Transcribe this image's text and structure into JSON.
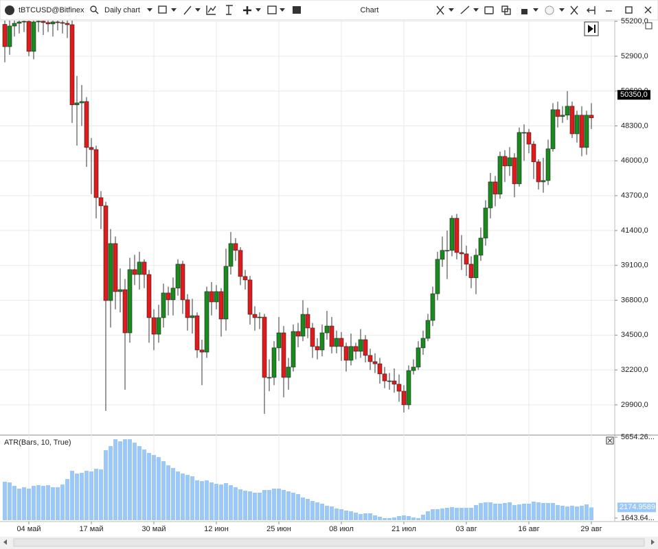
{
  "toolbar": {
    "symbol": "tBTCUSD@Bitfinex",
    "chart_type": "Daily chart",
    "title": "Chart"
  },
  "chart_data": [
    {
      "type": "candlestick",
      "categories": [
        null,
        null,
        null,
        null,
        null,
        "04 май",
        null,
        null,
        null,
        null,
        null,
        null,
        null,
        null,
        null,
        null,
        null,
        null,
        "17 май",
        null,
        null,
        null,
        null,
        null,
        null,
        null,
        null,
        null,
        null,
        null,
        null,
        "30 май",
        null,
        null,
        null,
        null,
        null,
        null,
        null,
        null,
        null,
        null,
        null,
        null,
        "12 июн",
        null,
        null,
        null,
        null,
        null,
        null,
        null,
        null,
        null,
        null,
        null,
        null,
        "25 июн",
        null,
        null,
        null,
        null,
        null,
        null,
        null,
        null,
        null,
        null,
        null,
        null,
        "08 июл",
        null,
        null,
        null,
        null,
        null,
        null,
        null,
        null,
        null,
        null,
        null,
        null,
        "21 июл",
        null,
        null,
        null,
        null,
        null,
        null,
        null,
        null,
        null,
        null,
        null,
        null,
        "03 авг",
        null,
        null,
        null,
        null,
        null,
        null,
        null,
        null,
        null,
        null,
        null,
        null,
        "16 авг",
        null,
        null,
        null,
        null,
        null,
        null,
        null,
        null,
        null,
        null,
        null,
        null,
        "29 авг"
      ],
      "open": [
        55000,
        53530,
        54890,
        55070,
        55160,
        55200,
        53220,
        55160,
        55210,
        55120,
        55030,
        55160,
        55120,
        55070,
        54980,
        49690,
        49820,
        49910,
        46880,
        46740,
        43570,
        43030,
        36780,
        40540,
        37370,
        37500,
        34650,
        38820,
        38500,
        39320,
        38500,
        35650,
        34560,
        35650,
        37280,
        36830,
        37600,
        39180,
        36830,
        35650,
        35780,
        33520,
        33380,
        37370,
        36690,
        37370,
        35560,
        39040,
        40540,
        40090,
        38370,
        38140,
        35870,
        35650,
        35690,
        31710,
        31710,
        33660,
        34650,
        31710,
        32390,
        34740,
        34430,
        35870,
        34970,
        33750,
        33520,
        34650,
        35100,
        33750,
        34290,
        33750,
        32840,
        33750,
        33430,
        34200,
        33160,
        32750,
        32610,
        31940,
        31480,
        31480,
        31260,
        30800,
        29900,
        32160,
        32390,
        33660,
        34290,
        35470,
        37230,
        39500,
        40090,
        40090,
        42210,
        39950,
        39860,
        39180,
        38280,
        39770,
        40900,
        42890,
        44610,
        43800,
        46290,
        45660,
        46200,
        44480,
        47870,
        47870,
        47100,
        45930,
        44610,
        44700,
        46790,
        49370,
        48920,
        49010,
        49600,
        47780,
        49010,
        46880,
        49010
      ],
      "high": [
        56000,
        55800,
        56000,
        56000,
        56200,
        55800,
        56000,
        56200,
        55900,
        55700,
        56100,
        55800,
        55600,
        55600,
        55400,
        51600,
        51000,
        50200,
        47500,
        47000,
        44000,
        43300,
        41500,
        41000,
        38900,
        38200,
        39600,
        39800,
        40000,
        39500,
        38800,
        36200,
        36500,
        37900,
        37700,
        38300,
        39500,
        39400,
        37200,
        36900,
        36000,
        34200,
        37700,
        38000,
        37800,
        37600,
        40200,
        41300,
        40900,
        40300,
        38800,
        38400,
        36400,
        36000,
        35900,
        32900,
        34100,
        35700,
        35100,
        33000,
        35200,
        35300,
        36800,
        36300,
        35300,
        34300,
        35200,
        36100,
        35700,
        34800,
        34700,
        34000,
        34600,
        34000,
        34900,
        34500,
        33600,
        33300,
        33000,
        32400,
        32000,
        32300,
        31900,
        31200,
        32500,
        32900,
        34100,
        34800,
        35900,
        37700,
        40000,
        41000,
        41400,
        42400,
        42500,
        41100,
        40400,
        39700,
        40200,
        41600,
        43400,
        45200,
        45000,
        46600,
        46700,
        46900,
        46500,
        48200,
        48400,
        48100,
        47300,
        46100,
        46200,
        47400,
        49800,
        49900,
        49600,
        50600,
        49900,
        49300,
        49600,
        49300,
        49800
      ],
      "low": [
        52500,
        53000,
        54200,
        54400,
        54500,
        52900,
        52700,
        54500,
        54300,
        54500,
        54200,
        54600,
        54400,
        54100,
        48500,
        47000,
        48300,
        45600,
        43800,
        42200,
        41500,
        29500,
        35000,
        36200,
        36000,
        30900,
        34000,
        37800,
        37500,
        37600,
        34000,
        33500,
        34000,
        35000,
        35800,
        35800,
        37100,
        35900,
        34800,
        34600,
        33000,
        31200,
        33000,
        35800,
        36200,
        34400,
        34800,
        38500,
        39400,
        37800,
        37500,
        35200,
        34800,
        34900,
        29300,
        30800,
        31200,
        32800,
        30400,
        30900,
        32100,
        33700,
        34100,
        34300,
        33000,
        32900,
        33100,
        34200,
        33300,
        33300,
        32800,
        32100,
        32500,
        32900,
        33000,
        32700,
        32200,
        32000,
        31300,
        31000,
        30900,
        30700,
        30100,
        29400,
        29600,
        31900,
        32200,
        33200,
        34100,
        35100,
        36800,
        39000,
        38200,
        39700,
        39500,
        38800,
        38400,
        37600,
        37200,
        39400,
        40400,
        42200,
        43000,
        43500,
        44600,
        45000,
        43600,
        44300,
        46000,
        46500,
        44800,
        44100,
        43900,
        44400,
        46600,
        48200,
        48500,
        48700,
        47500,
        47200,
        46300,
        46400,
        48100
      ],
      "close": [
        53530,
        54890,
        55070,
        55160,
        55200,
        53220,
        55160,
        55210,
        55120,
        55030,
        55160,
        55120,
        55070,
        54980,
        49690,
        49820,
        49910,
        46880,
        46740,
        43570,
        43030,
        36780,
        40540,
        37370,
        37500,
        34650,
        38820,
        38500,
        39320,
        38500,
        35650,
        34560,
        35650,
        37280,
        36830,
        37600,
        39180,
        36830,
        35650,
        35780,
        33520,
        33380,
        37370,
        36690,
        37370,
        35560,
        39040,
        40540,
        40090,
        38370,
        38140,
        35870,
        35650,
        35690,
        31710,
        31710,
        33660,
        34650,
        31710,
        32390,
        34740,
        34430,
        35870,
        34970,
        33750,
        33520,
        34650,
        35100,
        33750,
        34290,
        33750,
        32840,
        33750,
        33430,
        34200,
        33160,
        32750,
        32610,
        31940,
        31480,
        31480,
        31260,
        30800,
        29900,
        32160,
        32390,
        33660,
        34290,
        35470,
        37230,
        39500,
        40090,
        40090,
        42210,
        39950,
        39860,
        39180,
        38280,
        39770,
        40900,
        42890,
        44610,
        43800,
        46290,
        45660,
        46200,
        44480,
        47870,
        47870,
        47100,
        45930,
        44610,
        44700,
        46790,
        49370,
        48920,
        49010,
        49600,
        47780,
        49010,
        46880,
        49010,
        48830
      ],
      "up_color": "#1a8a1f",
      "down_color": "#e01b1b",
      "ylim": [
        27950,
        55250
      ],
      "yticks": [
        {
          "value": 55200,
          "label": "55200,0"
        },
        {
          "value": 52900,
          "label": "52900,0"
        },
        {
          "value": 50600,
          "label": "50600,0"
        },
        {
          "value": 48300,
          "label": "48300,0"
        },
        {
          "value": 46000,
          "label": "46000,0"
        },
        {
          "value": 43700,
          "label": "43700,0"
        },
        {
          "value": 41400,
          "label": "41400,0"
        },
        {
          "value": 39100,
          "label": "39100,0"
        },
        {
          "value": 36800,
          "label": "36800,0"
        },
        {
          "value": 34500,
          "label": "34500,0"
        },
        {
          "value": 32200,
          "label": "32200,0"
        },
        {
          "value": 29900,
          "label": "29900,0"
        }
      ],
      "grid": true,
      "last_price": 50350,
      "last_price_label": "50350,0"
    },
    {
      "type": "bar",
      "title": "ATR(Bars, 10, True)",
      "values": [
        3445,
        3411,
        3241,
        3105,
        3173,
        3105,
        3241,
        3275,
        3241,
        3275,
        3173,
        3173,
        3309,
        3581,
        3989,
        3853,
        3887,
        3989,
        3955,
        4091,
        4057,
        5009,
        5213,
        5553,
        5451,
        5553,
        5553,
        5383,
        5213,
        5043,
        4873,
        4771,
        4669,
        4465,
        4261,
        4125,
        3955,
        3853,
        3785,
        3717,
        3513,
        3479,
        3513,
        3411,
        3343,
        3309,
        3377,
        3275,
        3173,
        3071,
        3003,
        2969,
        2901,
        2901,
        3037,
        3037,
        3105,
        3105,
        3037,
        2969,
        2901,
        2833,
        2663,
        2595,
        2493,
        2425,
        2357,
        2255,
        2221,
        2119,
        2085,
        2017,
        1983,
        1915,
        1847,
        1881,
        1881,
        1779,
        1711,
        1644,
        1644,
        1678,
        1745,
        1779,
        1745,
        1678,
        1644,
        1813,
        1983,
        2085,
        2085,
        2119,
        2153,
        2187,
        2153,
        2153,
        2153,
        2153,
        2289,
        2391,
        2425,
        2425,
        2357,
        2357,
        2391,
        2425,
        2289,
        2323,
        2357,
        2357,
        2459,
        2425,
        2391,
        2391,
        2391,
        2289,
        2255,
        2221,
        2255,
        2221,
        2255,
        2323,
        2174.9589
      ],
      "color": "#9cc8f7",
      "ylim": [
        1540,
        5760
      ],
      "yticks": [
        {
          "value": 5654.26,
          "label": "5654.26..."
        },
        {
          "value": 1643.64,
          "label": "1643.64..."
        }
      ]
    }
  ]
}
